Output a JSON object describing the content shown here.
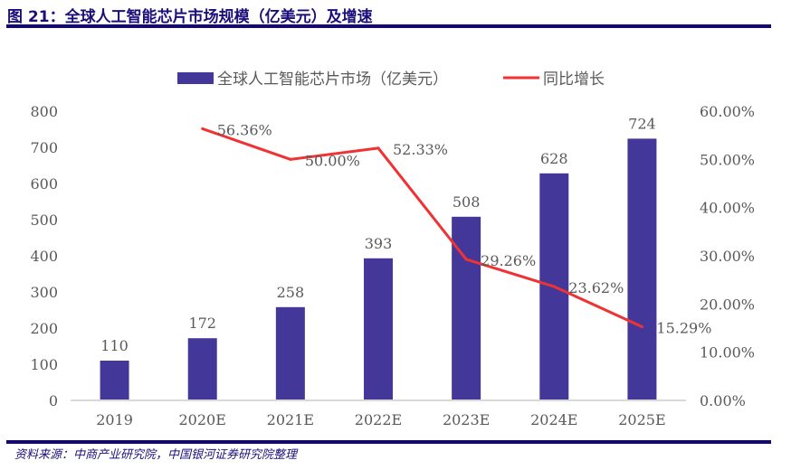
{
  "title": "图 21：全球人工智能芯片市场规模（亿美元）及增速",
  "source": "资料来源：中商产业研究院，中国银河证券研究院整理",
  "colors": {
    "bar": "#43389a",
    "line": "#f03232",
    "rule": "#12067a",
    "text": "#595959"
  },
  "chart_data": {
    "type": "bar+line",
    "categories": [
      "2019",
      "2020E",
      "2021E",
      "2022E",
      "2023E",
      "2024E",
      "2025E"
    ],
    "series": [
      {
        "name": "全球人工智能芯片市场（亿美元）",
        "type": "bar",
        "axis": "left",
        "values": [
          110,
          172,
          258,
          393,
          508,
          628,
          724
        ],
        "labels": [
          "110",
          "172",
          "258",
          "393",
          "508",
          "628",
          "724"
        ]
      },
      {
        "name": "同比增长",
        "type": "line",
        "axis": "right",
        "values": [
          null,
          56.36,
          50.0,
          52.33,
          29.26,
          23.62,
          15.29
        ],
        "labels": [
          "",
          "56.36%",
          "50.00%",
          "52.33%",
          "29.26%",
          "23.62%",
          "15.29%"
        ]
      }
    ],
    "left_axis": {
      "ylim": [
        0,
        800
      ],
      "ticks": [
        "0",
        "100",
        "200",
        "300",
        "400",
        "500",
        "600",
        "700",
        "800"
      ]
    },
    "right_axis": {
      "ylim": [
        0,
        60
      ],
      "ticks": [
        "0.00%",
        "10.00%",
        "20.00%",
        "30.00%",
        "40.00%",
        "50.00%",
        "60.00%"
      ]
    },
    "legend": "top",
    "grid": false
  }
}
